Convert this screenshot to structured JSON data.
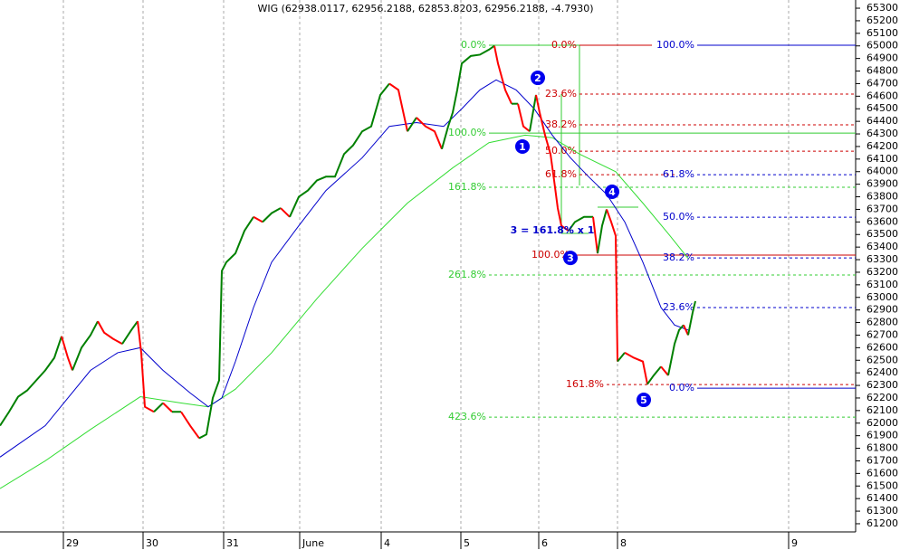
{
  "chart_data": {
    "type": "line",
    "title": "WIG (62938.0117, 62956.2188, 62853.8203, 62956.2188, -4.7930)",
    "xlim": [
      0,
      945
    ],
    "ylim": [
      61135,
      65365
    ],
    "xticks": [
      {
        "value": 70,
        "label": "29"
      },
      {
        "value": 158,
        "label": "30"
      },
      {
        "value": 247,
        "label": "31"
      },
      {
        "value": 331,
        "label": "June"
      },
      {
        "value": 421,
        "label": "4"
      },
      {
        "value": 509,
        "label": "5"
      },
      {
        "value": 595,
        "label": "6"
      },
      {
        "value": 682,
        "label": "8"
      },
      {
        "value": 871,
        "label": "9"
      }
    ],
    "yticks": [
      61200,
      61300,
      61400,
      61500,
      61600,
      61700,
      61800,
      61900,
      62000,
      62100,
      62200,
      62300,
      62400,
      62500,
      62600,
      62700,
      62800,
      62900,
      63000,
      63100,
      63200,
      63300,
      63400,
      63500,
      63600,
      63700,
      63800,
      63900,
      64000,
      64100,
      64200,
      64300,
      64400,
      64500,
      64600,
      64700,
      64800,
      64900,
      65000,
      65100,
      65200,
      65300
    ],
    "grid": true,
    "up_color": "#008000",
    "down_color": "#ff0000",
    "series": [
      {
        "color": "#008000",
        "x": [
          0,
          10,
          20,
          30,
          40,
          50,
          60,
          68,
          75,
          80,
          90,
          100,
          108,
          115,
          125,
          135,
          145,
          152,
          156,
          160,
          170,
          180,
          190,
          200,
          210,
          220,
          228,
          235,
          242,
          245,
          250,
          260,
          270,
          280,
          290,
          300,
          310,
          320,
          330,
          340,
          350,
          360,
          370,
          380,
          390,
          400,
          410,
          420,
          430,
          440,
          450,
          460,
          470,
          480,
          488,
          495,
          500,
          505,
          510,
          520,
          530,
          540,
          546,
          550,
          558,
          565,
          572,
          578,
          585,
          592,
          596,
          602,
          608,
          612,
          616,
          620,
          628,
          635,
          645,
          655,
          660,
          665,
          670,
          675,
          680,
          682,
          690,
          700,
          710,
          715,
          722,
          730,
          738,
          745,
          750,
          755,
          760,
          765,
          768
        ],
        "values": [
          61980,
          62090,
          62210,
          62260,
          62340,
          62420,
          62520,
          62690,
          62520,
          62420,
          62600,
          62700,
          62810,
          62720,
          62670,
          62630,
          62740,
          62810,
          62560,
          62130,
          62090,
          62160,
          62090,
          62090,
          61980,
          61880,
          61910,
          62200,
          62340,
          63210,
          63280,
          63350,
          63530,
          63640,
          63600,
          63670,
          63710,
          63640,
          63800,
          63850,
          63930,
          63960,
          63960,
          64140,
          64210,
          64320,
          64360,
          64610,
          64700,
          64650,
          64320,
          64430,
          64360,
          64320,
          64180,
          64360,
          64470,
          64650,
          64860,
          64920,
          64930,
          64970,
          65000,
          64860,
          64650,
          64540,
          64540,
          64360,
          64320,
          64610,
          64470,
          64290,
          64140,
          63930,
          63710,
          63570,
          63530,
          63600,
          63640,
          63640,
          63350,
          63570,
          63700,
          63600,
          63490,
          62490,
          62560,
          62520,
          62490,
          62310,
          62380,
          62450,
          62380,
          62630,
          62740,
          62780,
          62700,
          62880,
          62970
        ],
        "colored_by_direction": true
      },
      {
        "color": "#0000cc",
        "x": [
          0,
          50,
          100,
          130,
          155,
          180,
          210,
          230,
          245,
          260,
          280,
          300,
          330,
          360,
          400,
          430,
          460,
          490,
          510,
          530,
          548,
          570,
          590,
          610,
          630,
          650,
          670,
          690,
          710,
          730,
          745,
          760
        ],
        "values": [
          61730,
          61980,
          62420,
          62560,
          62600,
          62420,
          62240,
          62130,
          62200,
          62490,
          62920,
          63280,
          63570,
          63850,
          64110,
          64360,
          64390,
          64360,
          64500,
          64650,
          64730,
          64650,
          64500,
          64290,
          64110,
          63960,
          63820,
          63600,
          63280,
          62920,
          62780,
          62740
        ]
      },
      {
        "color": "#33dd33",
        "x": [
          0,
          50,
          100,
          155,
          200,
          230,
          260,
          300,
          350,
          400,
          450,
          500,
          540,
          580,
          610,
          640,
          680,
          710,
          740,
          760
        ],
        "values": [
          61480,
          61700,
          61950,
          62210,
          62160,
          62130,
          62270,
          62560,
          62990,
          63390,
          63750,
          64030,
          64230,
          64290,
          64270,
          64140,
          64000,
          63750,
          63490,
          63310
        ]
      }
    ],
    "levels": [
      {
        "label": "0.0%",
        "value": 65005,
        "x": [
          540,
          640
        ],
        "color": "#33cc33",
        "dashed": false
      },
      {
        "label": "0.0%",
        "value": 65005,
        "x": [
          640,
          720
        ],
        "color": "#cc0000",
        "dashed": false
      },
      {
        "label": "100.0%",
        "value": 65005,
        "x": [
          770,
          945
        ],
        "color": "#0000cc",
        "dashed": false
      },
      {
        "label": "23.6%",
        "value": 64617,
        "x": [
          640,
          945
        ],
        "color": "#cc0000",
        "dashed": true
      },
      {
        "label": "38.2%",
        "value": 64372,
        "x": [
          640,
          945
        ],
        "color": "#cc0000",
        "dashed": true
      },
      {
        "label": "100.0%",
        "value": 64307,
        "x": [
          540,
          945
        ],
        "color": "#33cc33",
        "dashed": false
      },
      {
        "label": "50.0%",
        "value": 64163,
        "x": [
          640,
          945
        ],
        "color": "#cc0000",
        "dashed": true
      },
      {
        "label": "61.8%",
        "value": 63976,
        "x": [
          640,
          745
        ],
        "color": "#cc0000",
        "dashed": true
      },
      {
        "label": "61.8%",
        "value": 63976,
        "x": [
          770,
          945
        ],
        "color": "#0000cc",
        "dashed": true
      },
      {
        "label": "161.8%",
        "value": 63876,
        "x": [
          540,
          945
        ],
        "color": "#33cc33",
        "dashed": true
      },
      {
        "label": "50.0%",
        "value": 63638,
        "x": [
          770,
          945
        ],
        "color": "#0000cc",
        "dashed": true
      },
      {
        "label": "100.0%",
        "value": 63336,
        "x": [
          632,
          945
        ],
        "color": "#cc0000",
        "dashed": false
      },
      {
        "label": "38.2%",
        "value": 63314,
        "x": [
          770,
          945
        ],
        "color": "#0000cc",
        "dashed": true
      },
      {
        "label": "261.8%",
        "value": 63178,
        "x": [
          540,
          945
        ],
        "color": "#33cc33",
        "dashed": true
      },
      {
        "label": "23.6%",
        "value": 62919,
        "x": [
          770,
          945
        ],
        "color": "#0000cc",
        "dashed": true
      },
      {
        "label": "161.8%",
        "value": 62307,
        "x": [
          670,
          945
        ],
        "color": "#cc0000",
        "dashed": true
      },
      {
        "label": "0.0%",
        "value": 62278,
        "x": [
          770,
          945
        ],
        "color": "#0000cc",
        "dashed": false
      },
      {
        "label": "423.6%",
        "value": 62048,
        "x": [
          540,
          945
        ],
        "color": "#33cc33",
        "dashed": true
      }
    ],
    "annotations": [
      {
        "text": "3 = 161.8% x 1",
        "x": 610,
        "value": 63530
      }
    ],
    "markers": [
      {
        "label": "1",
        "x": 577,
        "value": 64200
      },
      {
        "label": "2",
        "x": 594,
        "value": 64746
      },
      {
        "label": "3",
        "x": 630,
        "value": 63314
      },
      {
        "label": "4",
        "x": 676,
        "value": 63840
      },
      {
        "label": "5",
        "x": 711,
        "value": 62185
      }
    ]
  }
}
